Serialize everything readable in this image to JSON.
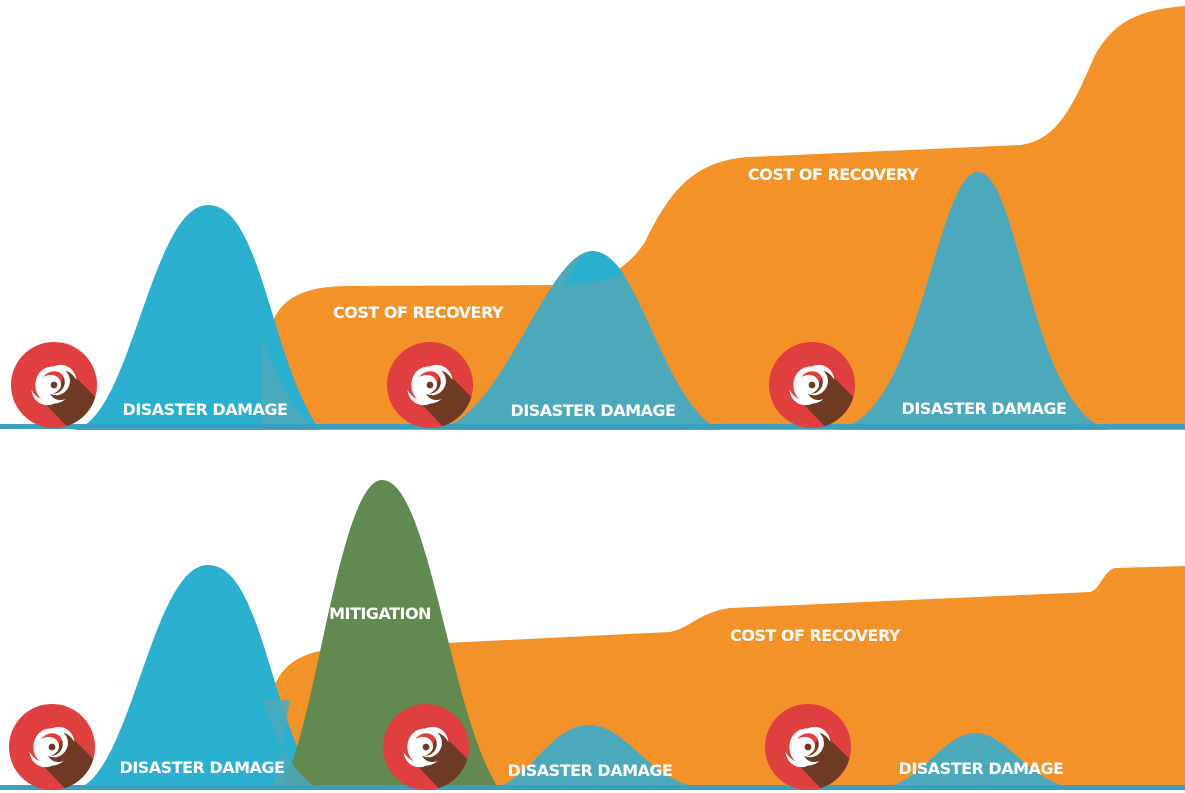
{
  "colors": {
    "recovery": "#F4922A",
    "damage": "#2BAFCF",
    "damage_overlap": "#4CA9BC",
    "mitigation": "#62894F",
    "icon_red": "#E03F3F",
    "icon_shadow": "#6E3A24",
    "baseline": "#3B9FBE"
  },
  "icons": [
    "hurricane-icon"
  ],
  "top_scenario": {
    "recovery_labels": [
      "COST OF RECOVERY",
      "COST OF RECOVERY"
    ],
    "damage_labels": [
      "DISASTER DAMAGE",
      "DISASTER DAMAGE",
      "DISASTER DAMAGE"
    ]
  },
  "bottom_scenario": {
    "mitigation_label": "MITIGATION",
    "recovery_label": "COST OF RECOVERY",
    "damage_labels": [
      "DISASTER DAMAGE",
      "DISASTER DAMAGE",
      "DISASTER DAMAGE"
    ]
  }
}
